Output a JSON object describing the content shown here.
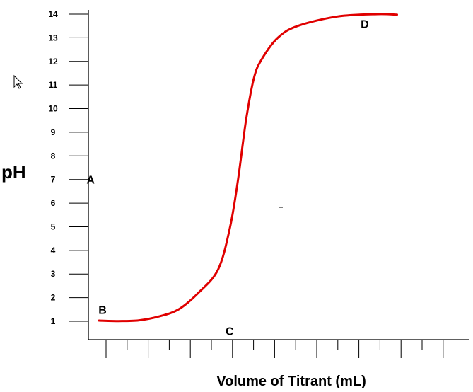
{
  "chart_data": {
    "type": "line",
    "title": "",
    "xlabel": "Volume of Titrant (mL)",
    "ylabel": "pH",
    "ylim": [
      1,
      14
    ],
    "y_ticks": [
      1,
      2,
      3,
      4,
      5,
      6,
      7,
      8,
      9,
      10,
      11,
      12,
      13,
      14
    ],
    "x_tick_labels": [],
    "grid": false,
    "legend": "none",
    "line_color": "#e00000",
    "series": [
      {
        "values": [
          [
            0.0,
            1.03
          ],
          [
            0.5,
            1.01
          ],
          [
            1.0,
            1.04
          ],
          [
            1.5,
            1.2
          ],
          [
            2.0,
            1.5
          ],
          [
            2.5,
            2.2
          ],
          [
            3.0,
            3.2
          ],
          [
            3.3,
            5.0
          ],
          [
            3.5,
            7.0
          ],
          [
            3.7,
            9.5
          ],
          [
            3.9,
            11.3
          ],
          [
            4.1,
            12.1
          ],
          [
            4.5,
            13.0
          ],
          [
            5.0,
            13.5
          ],
          [
            6.0,
            13.9
          ],
          [
            7.0,
            14.0
          ],
          [
            7.5,
            13.98
          ]
        ]
      }
    ],
    "annotations": [
      {
        "text": "A",
        "x": -0.3,
        "y": 7.0
      },
      {
        "text": "B",
        "x": 0.0,
        "y": 1.5
      },
      {
        "text": "C",
        "x": 3.2,
        "y": 0.6
      },
      {
        "text": "D",
        "x": 6.6,
        "y": 13.6
      }
    ]
  }
}
